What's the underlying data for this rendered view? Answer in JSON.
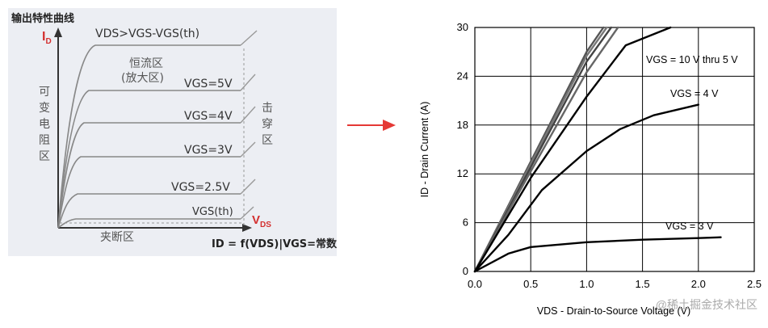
{
  "left_diagram": {
    "title": "输出特性曲线",
    "y_axis_label": "I",
    "y_axis_sub": "D",
    "x_axis_label": "V",
    "x_axis_sub": "DS",
    "boundary_label": "VDS>VGS-VGS(th)",
    "region_constant_line1": "恒流区",
    "region_constant_line2": "(放大区)",
    "region_variable": [
      "可",
      "变",
      "电",
      "阻",
      "区"
    ],
    "region_breakdown": [
      "击",
      "穿",
      "区"
    ],
    "region_cutoff": "夹断区",
    "curve_labels": [
      "VGS=5V",
      "VGS=4V",
      "VGS=3V",
      "VGS=2.5V",
      "VGS(th)"
    ],
    "formula": "ID = f(VDS)|VGS=常数"
  },
  "arrow": {
    "color": "#e53935"
  },
  "chart_data": {
    "type": "line",
    "xlabel": "VDS - Drain-to-Source Voltage (V)",
    "ylabel": "ID - Drain Current (A)",
    "xlim": [
      0,
      2.5
    ],
    "ylim": [
      0,
      30
    ],
    "xticks": [
      "0.0",
      "0.5",
      "1.0",
      "1.5",
      "2.0",
      "2.5"
    ],
    "yticks": [
      "0",
      "6",
      "12",
      "18",
      "24",
      "30"
    ],
    "grid": true,
    "annotations": [
      "VGS = 10 V thru 5 V",
      "VGS = 4 V",
      "VGS = 3 V"
    ],
    "series": [
      {
        "x": [
          0,
          0.5,
          1.0,
          1.15
        ],
        "y": [
          0,
          13.5,
          27,
          30
        ]
      },
      {
        "x": [
          0,
          0.5,
          1.0,
          1.18
        ],
        "y": [
          0,
          13.2,
          26.5,
          30
        ]
      },
      {
        "x": [
          0,
          0.5,
          1.0,
          1.22
        ],
        "y": [
          0,
          12.8,
          25.8,
          30
        ]
      },
      {
        "x": [
          0,
          0.5,
          1.0,
          1.28
        ],
        "y": [
          0,
          12.3,
          24.5,
          30
        ]
      },
      {
        "x": [
          0,
          0.5,
          1.0,
          1.35,
          1.75
        ],
        "y": [
          0,
          11.5,
          21.5,
          27.8,
          30
        ]
      },
      {
        "x": [
          0,
          0.3,
          0.6,
          1.0,
          1.3,
          1.6,
          2.0
        ],
        "y": [
          0,
          4.5,
          10,
          14.8,
          17.5,
          19.2,
          20.5
        ]
      },
      {
        "x": [
          0,
          0.3,
          0.5,
          1.0,
          1.5,
          2.0,
          2.2
        ],
        "y": [
          0,
          2.2,
          3.0,
          3.6,
          3.9,
          4.1,
          4.2
        ]
      }
    ]
  },
  "watermark": "@稀土掘金技术社区"
}
